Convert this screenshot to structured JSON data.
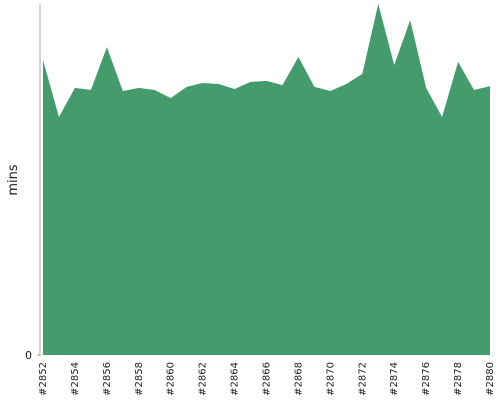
{
  "chart_data": {
    "type": "area",
    "y_label": "mins",
    "categories": [
      "#2852",
      null,
      "#2854",
      null,
      "#2856",
      null,
      "#2858",
      null,
      "#2860",
      null,
      "#2862",
      null,
      "#2864",
      null,
      "#2866",
      null,
      "#2868",
      null,
      "#2870",
      null,
      "#2872",
      null,
      "#2874",
      null,
      "#2876",
      null,
      "#2878",
      null,
      "#2880"
    ],
    "values": [
      84.0,
      67.8,
      76.1,
      75.5,
      87.7,
      75.2,
      76.1,
      75.5,
      73.2,
      76.4,
      77.5,
      77.2,
      75.8,
      77.8,
      78.1,
      76.9,
      84.9,
      76.4,
      75.2,
      77.2,
      80.1,
      100,
      82.6,
      95.4,
      76.1,
      67.8,
      83.5,
      75.5,
      76.6
    ],
    "color": "#449b6c",
    "ylim": [
      0,
      100
    ],
    "yticks": [
      0
    ]
  }
}
